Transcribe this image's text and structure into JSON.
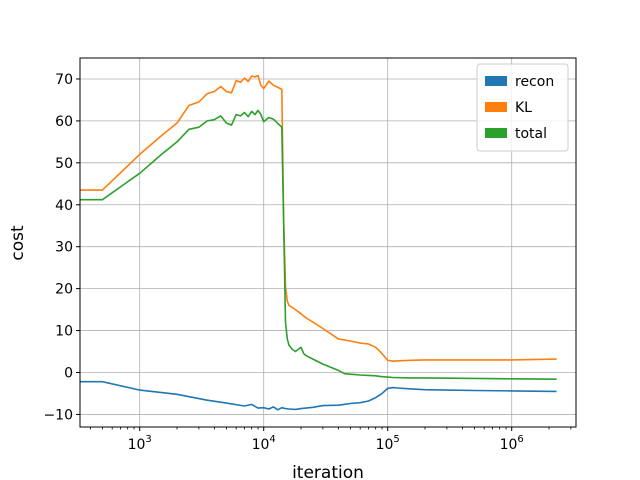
{
  "chart_data": {
    "type": "line",
    "title": "",
    "xlabel": "iteration",
    "ylabel": "cost",
    "xscale": "log",
    "xlim": [
      330,
      3300000
    ],
    "ylim": [
      -13,
      75
    ],
    "x_ticks": [
      {
        "value": 1000,
        "base": "10",
        "exp": "3"
      },
      {
        "value": 10000,
        "base": "10",
        "exp": "4"
      },
      {
        "value": 100000,
        "base": "10",
        "exp": "5"
      },
      {
        "value": 1000000,
        "base": "10",
        "exp": "6"
      }
    ],
    "y_ticks": [
      -10,
      0,
      10,
      20,
      30,
      40,
      50,
      60,
      70
    ],
    "y_tick_labels": [
      "−10",
      "0",
      "10",
      "20",
      "30",
      "40",
      "50",
      "60",
      "70"
    ],
    "grid": true,
    "legend_position": "top-right",
    "series": [
      {
        "name": "recon",
        "color": "#1f77b4",
        "x": [
          330,
          500,
          1000,
          2000,
          3500,
          5000,
          7000,
          8000,
          9000,
          10000,
          11000,
          12000,
          13000,
          14000,
          15000,
          16000,
          18000,
          20000,
          25000,
          30000,
          40000,
          50000,
          60000,
          70000,
          80000,
          90000,
          100000,
          110000,
          120000,
          150000,
          200000,
          300000,
          500000,
          1000000,
          2300000
        ],
        "y": [
          -2.2,
          -2.2,
          -4.2,
          -5.2,
          -6.6,
          -7.3,
          -8,
          -7.6,
          -8.5,
          -8.4,
          -8.7,
          -8.2,
          -8.9,
          -8.4,
          -8.6,
          -8.7,
          -8.8,
          -8.6,
          -8.3,
          -7.9,
          -7.8,
          -7.4,
          -7.2,
          -6.8,
          -6,
          -5,
          -3.8,
          -3.6,
          -3.7,
          -3.9,
          -4.1,
          -4.2,
          -4.3,
          -4.4,
          -4.5
        ]
      },
      {
        "name": "KL",
        "color": "#ff7f0e",
        "x": [
          330,
          500,
          1000,
          1500,
          2000,
          2500,
          3000,
          3500,
          4000,
          4500,
          5000,
          5500,
          6000,
          6500,
          7000,
          7500,
          8000,
          8500,
          9000,
          9500,
          10000,
          11000,
          12000,
          13000,
          14000,
          14500,
          15000,
          15500,
          16000,
          17000,
          18000,
          20000,
          22000,
          25000,
          30000,
          40000,
          50000,
          60000,
          70000,
          80000,
          90000,
          100000,
          110000,
          150000,
          200000,
          500000,
          1000000,
          2300000
        ],
        "y": [
          43.5,
          43.5,
          52,
          56.5,
          59.5,
          63.7,
          64.5,
          66.5,
          67,
          68.2,
          67,
          66.7,
          69.6,
          69.2,
          70.2,
          69.4,
          70.7,
          70.5,
          70.8,
          68.5,
          67.7,
          69.5,
          68.5,
          68,
          67.5,
          36,
          20.5,
          17,
          16,
          15.5,
          15,
          14,
          13,
          12,
          10.5,
          8,
          7.5,
          7,
          6.8,
          6,
          4.5,
          2.9,
          2.7,
          2.9,
          3,
          3,
          3,
          3.2
        ]
      },
      {
        "name": "total",
        "color": "#2ca02c",
        "x": [
          330,
          500,
          1000,
          1500,
          2000,
          2500,
          3000,
          3500,
          4000,
          4500,
          5000,
          5500,
          6000,
          6500,
          7000,
          7500,
          8000,
          8500,
          9000,
          9500,
          10000,
          11000,
          12000,
          13000,
          14000,
          14500,
          15000,
          15500,
          16000,
          17000,
          18000,
          19000,
          20000,
          21000,
          22000,
          25000,
          30000,
          40000,
          45000,
          50000,
          60000,
          70000,
          80000,
          90000,
          100000,
          110000,
          150000,
          200000,
          500000,
          1000000,
          2300000
        ],
        "y": [
          41.2,
          41.2,
          47.5,
          52,
          55,
          58,
          58.5,
          60,
          60.3,
          61.2,
          59.5,
          59,
          61.5,
          61.2,
          62,
          61,
          62.3,
          61.5,
          62.5,
          61.5,
          59.8,
          60.8,
          60.4,
          59.4,
          58.5,
          35,
          12,
          8,
          6.5,
          5.5,
          5,
          5.5,
          6,
          4.5,
          4,
          3.2,
          2,
          0.5,
          -0.3,
          -0.4,
          -0.6,
          -0.7,
          -0.8,
          -1,
          -1.1,
          -1.2,
          -1.3,
          -1.3,
          -1.4,
          -1.5,
          -1.6
        ]
      }
    ]
  }
}
